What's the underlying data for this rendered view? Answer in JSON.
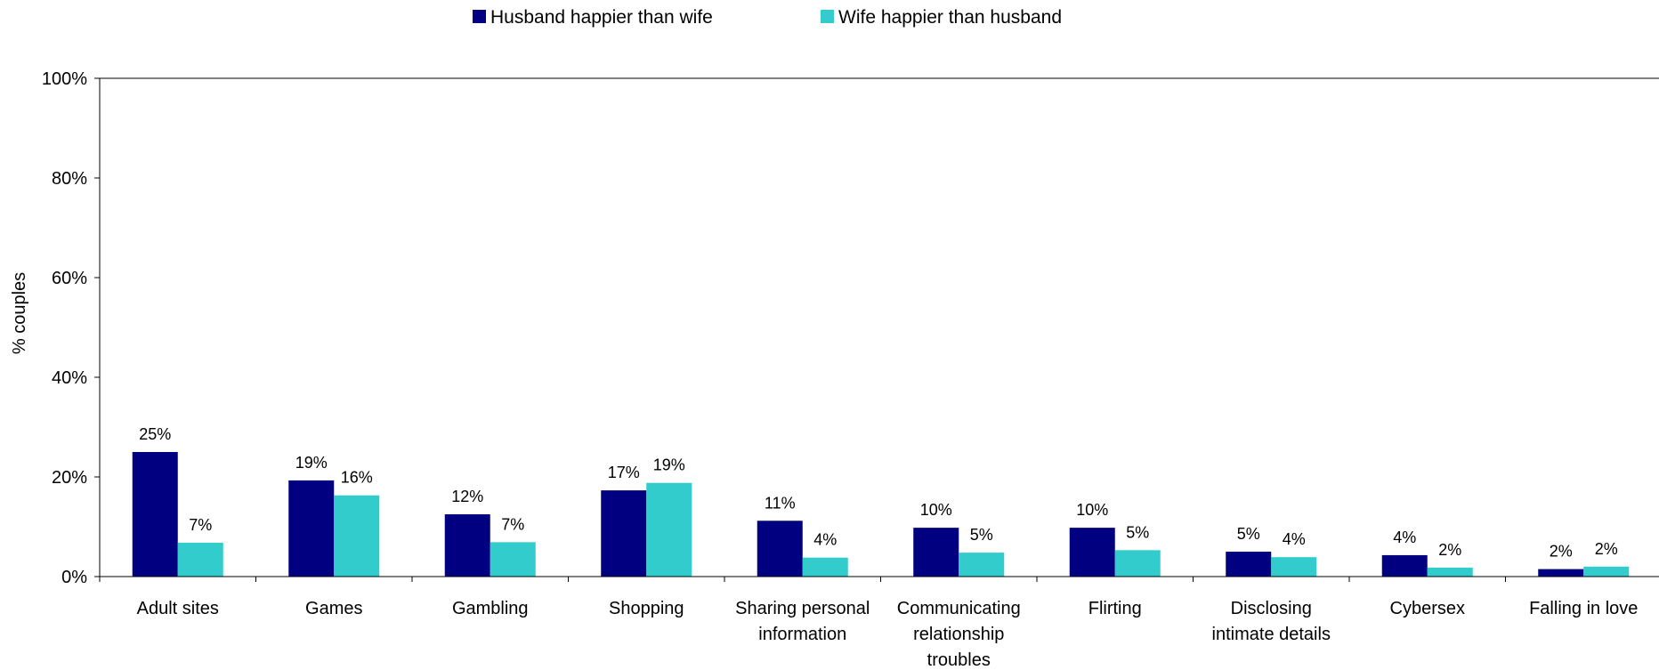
{
  "chart_data": {
    "type": "bar",
    "title": "",
    "xlabel": "",
    "ylabel": "% couples",
    "ylim": [
      0,
      100
    ],
    "yticks": [
      "0%",
      "20%",
      "40%",
      "60%",
      "80%",
      "100%"
    ],
    "ytick_values": [
      0,
      20,
      40,
      60,
      80,
      100
    ],
    "grid": false,
    "legend_position": "top-center",
    "categories": [
      [
        "Adult sites"
      ],
      [
        "Games"
      ],
      [
        "Gambling"
      ],
      [
        "Shopping"
      ],
      [
        "Sharing personal",
        "information"
      ],
      [
        "Communicating",
        "relationship",
        "troubles"
      ],
      [
        "Flirting"
      ],
      [
        "Disclosing",
        "intimate details"
      ],
      [
        "Cybersex"
      ],
      [
        "Falling in love"
      ]
    ],
    "series": [
      {
        "name": "Husband happier than wife",
        "color": "#000080",
        "values": [
          25,
          19,
          12,
          17,
          11,
          10,
          10,
          5,
          4,
          2
        ],
        "labels": [
          "25%",
          "19%",
          "12%",
          "17%",
          "11%",
          "10%",
          "10%",
          "5%",
          "4%",
          "2%"
        ],
        "heights": [
          25,
          19.3,
          12.5,
          17.3,
          11.2,
          9.8,
          9.8,
          5,
          4.3,
          1.5
        ]
      },
      {
        "name": "Wife happier than husband",
        "color": "#33CCCC",
        "values": [
          7,
          16,
          7,
          19,
          4,
          5,
          5,
          4,
          2,
          2
        ],
        "labels": [
          "7%",
          "16%",
          "7%",
          "19%",
          "4%",
          "5%",
          "5%",
          "4%",
          "2%",
          "2%"
        ],
        "heights": [
          6.8,
          16.3,
          6.9,
          18.8,
          3.8,
          4.8,
          5.3,
          3.9,
          1.8,
          2
        ]
      }
    ]
  }
}
